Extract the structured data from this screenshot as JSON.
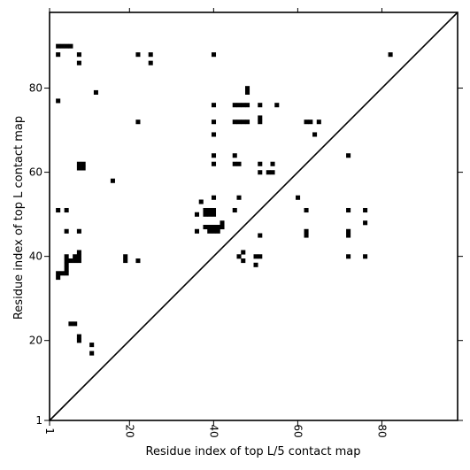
{
  "chart_data": {
    "type": "heatmap",
    "title": "",
    "xlabel": "Residue index of top L/5 contact map",
    "ylabel": "Residue index of top L contact map",
    "xlim": [
      1,
      98
    ],
    "ylim": [
      1,
      98
    ],
    "x_ticks": [
      1,
      20,
      40,
      60,
      80
    ],
    "y_ticks": [
      1,
      20,
      40,
      60,
      80
    ],
    "x_tick_labels": [
      "1",
      "20",
      "40",
      "60",
      "80"
    ],
    "y_tick_labels": [
      "1",
      "20",
      "40",
      "60",
      "80"
    ],
    "diagonal": true,
    "grid": false,
    "cell_color": "#000000",
    "background_color": "#ffffff",
    "points": [
      [
        3,
        90
      ],
      [
        4,
        90
      ],
      [
        5,
        90
      ],
      [
        6,
        90
      ],
      [
        3,
        88
      ],
      [
        8,
        88
      ],
      [
        8,
        86
      ],
      [
        22,
        88
      ],
      [
        25,
        88
      ],
      [
        25,
        86
      ],
      [
        40,
        88
      ],
      [
        82,
        88
      ],
      [
        3,
        77
      ],
      [
        12,
        79
      ],
      [
        22,
        72
      ],
      [
        40,
        76
      ],
      [
        40,
        72
      ],
      [
        40,
        69
      ],
      [
        40,
        64
      ],
      [
        40,
        62
      ],
      [
        45,
        76
      ],
      [
        46,
        76
      ],
      [
        47,
        76
      ],
      [
        48,
        76
      ],
      [
        48,
        80
      ],
      [
        48,
        79
      ],
      [
        51,
        76
      ],
      [
        55,
        76
      ],
      [
        45,
        72
      ],
      [
        46,
        72
      ],
      [
        47,
        72
      ],
      [
        48,
        72
      ],
      [
        51,
        73
      ],
      [
        51,
        72
      ],
      [
        62,
        72
      ],
      [
        63,
        72
      ],
      [
        65,
        72
      ],
      [
        64,
        69
      ],
      [
        45,
        64
      ],
      [
        45,
        62
      ],
      [
        46,
        62
      ],
      [
        51,
        62
      ],
      [
        51,
        60
      ],
      [
        53,
        60
      ],
      [
        54,
        60
      ],
      [
        54,
        62
      ],
      [
        72,
        64
      ],
      [
        8,
        62
      ],
      [
        9,
        62
      ],
      [
        8,
        61
      ],
      [
        9,
        61
      ],
      [
        16,
        58
      ],
      [
        3,
        51
      ],
      [
        5,
        51
      ],
      [
        5,
        46
      ],
      [
        8,
        46
      ],
      [
        37,
        53
      ],
      [
        36,
        50
      ],
      [
        38,
        51
      ],
      [
        39,
        51
      ],
      [
        40,
        51
      ],
      [
        38,
        50
      ],
      [
        39,
        50
      ],
      [
        40,
        50
      ],
      [
        36,
        46
      ],
      [
        38,
        47
      ],
      [
        39,
        47
      ],
      [
        40,
        47
      ],
      [
        41,
        47
      ],
      [
        39,
        46
      ],
      [
        40,
        46
      ],
      [
        41,
        46
      ],
      [
        42,
        48
      ],
      [
        42,
        47
      ],
      [
        40,
        54
      ],
      [
        46,
        54
      ],
      [
        45,
        51
      ],
      [
        51,
        45
      ],
      [
        60,
        54
      ],
      [
        62,
        51
      ],
      [
        62,
        46
      ],
      [
        62,
        45
      ],
      [
        72,
        51
      ],
      [
        72,
        46
      ],
      [
        72,
        45
      ],
      [
        76,
        51
      ],
      [
        76,
        48
      ],
      [
        3,
        36
      ],
      [
        4,
        36
      ],
      [
        5,
        36
      ],
      [
        3,
        35
      ],
      [
        5,
        40
      ],
      [
        5,
        39
      ],
      [
        5,
        38
      ],
      [
        5,
        37
      ],
      [
        6,
        39
      ],
      [
        7,
        39
      ],
      [
        8,
        39
      ],
      [
        8,
        40
      ],
      [
        8,
        41
      ],
      [
        7,
        40
      ],
      [
        19,
        40
      ],
      [
        19,
        39
      ],
      [
        22,
        39
      ],
      [
        46,
        40
      ],
      [
        47,
        41
      ],
      [
        47,
        39
      ],
      [
        50,
        40
      ],
      [
        51,
        40
      ],
      [
        50,
        38
      ],
      [
        72,
        40
      ],
      [
        76,
        40
      ],
      [
        6,
        24
      ],
      [
        7,
        24
      ],
      [
        8,
        21
      ],
      [
        8,
        20
      ],
      [
        11,
        19
      ],
      [
        11,
        17
      ]
    ]
  }
}
